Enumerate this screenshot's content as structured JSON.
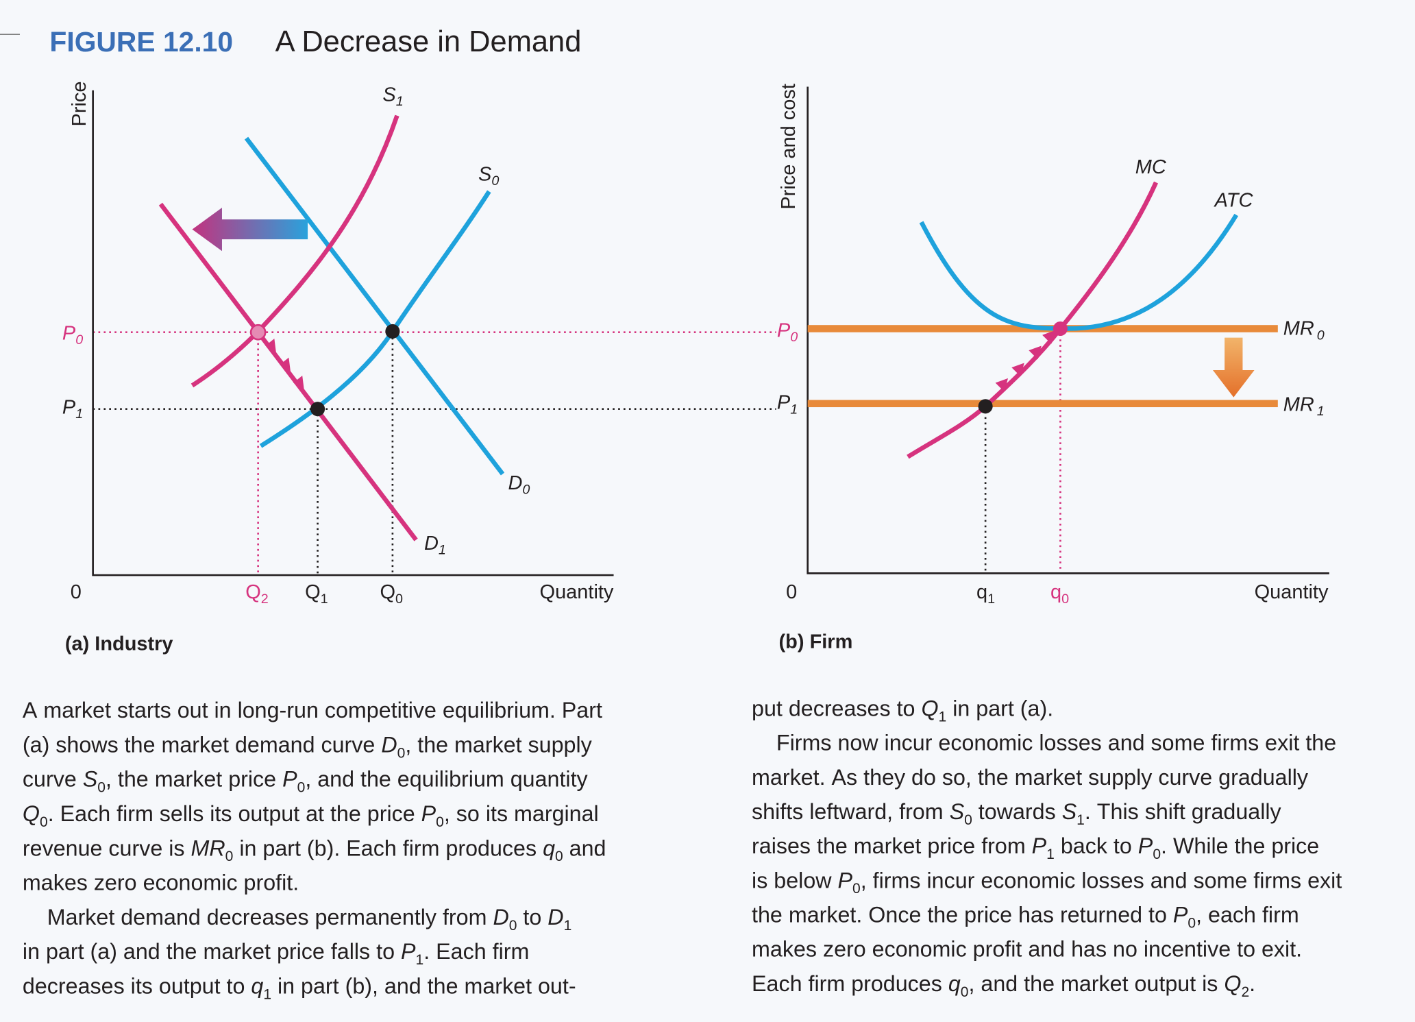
{
  "header": {
    "figure_number": "FIGURE 12.10",
    "title": "A Decrease in Demand"
  },
  "colors": {
    "pink": "#d6337e",
    "blue": "#1ea2dc",
    "orange": "#e88a3a",
    "title_blue": "#3b6fb6"
  },
  "panel_a": {
    "caption": "(a) Industry",
    "y_axis": "Price",
    "x_axis": "Quantity",
    "origin": "0",
    "curves": {
      "S1": {
        "base": "S",
        "sub": "1"
      },
      "S0": {
        "base": "S",
        "sub": "0"
      },
      "D0": {
        "base": "D",
        "sub": "0"
      },
      "D1": {
        "base": "D",
        "sub": "1"
      }
    },
    "P0": {
      "base": "P",
      "sub": "0"
    },
    "P1": {
      "base": "P",
      "sub": "1"
    },
    "Q2": {
      "base": "Q",
      "sub": "2"
    },
    "Q1": {
      "base": "Q",
      "sub": "1"
    },
    "Q0": {
      "base": "Q",
      "sub": "0"
    }
  },
  "panel_b": {
    "caption": "(b) Firm",
    "y_axis": "Price and cost",
    "x_axis": "Quantity",
    "origin": "0",
    "MC": "MC",
    "ATC": "ATC",
    "MR0": {
      "base": "MR",
      "sub": "0"
    },
    "MR1": {
      "base": "MR",
      "sub": "1"
    },
    "P0": {
      "base": "P",
      "sub": "0"
    },
    "P1": {
      "base": "P",
      "sub": "1"
    },
    "q1": {
      "base": "q",
      "sub": "1"
    },
    "q0": {
      "base": "q",
      "sub": "0"
    }
  },
  "text": {
    "left": [
      [
        [
          "A market starts out in long-run competitive equilibrium. Part",
          "n"
        ]
      ],
      [
        [
          "(a) shows the market demand curve ",
          "n"
        ],
        [
          "D",
          "i"
        ],
        [
          "0",
          "s"
        ],
        [
          ", the market supply",
          "n"
        ]
      ],
      [
        [
          "curve ",
          "n"
        ],
        [
          "S",
          "i"
        ],
        [
          "0",
          "s"
        ],
        [
          ", the market price ",
          "n"
        ],
        [
          "P",
          "i"
        ],
        [
          "0",
          "s"
        ],
        [
          ", and the equilibrium quantity",
          "n"
        ]
      ],
      [
        [
          "Q",
          "i"
        ],
        [
          "0",
          "s"
        ],
        [
          ". Each firm sells its output at the price ",
          "n"
        ],
        [
          "P",
          "i"
        ],
        [
          "0",
          "s"
        ],
        [
          ", so its marginal",
          "n"
        ]
      ],
      [
        [
          "revenue curve is ",
          "n"
        ],
        [
          "MR",
          "i"
        ],
        [
          "0",
          "s"
        ],
        [
          " in part (b). Each firm produces ",
          "n"
        ],
        [
          "q",
          "i"
        ],
        [
          "0",
          "s"
        ],
        [
          " and",
          "n"
        ]
      ],
      [
        [
          "makes zero economic profit.",
          "n"
        ]
      ],
      [
        [
          "    Market demand decreases permanently from ",
          "n"
        ],
        [
          "D",
          "i"
        ],
        [
          "0",
          "s"
        ],
        [
          " to ",
          "n"
        ],
        [
          "D",
          "i"
        ],
        [
          "1",
          "s"
        ]
      ],
      [
        [
          "in part (a) and the market price falls to ",
          "n"
        ],
        [
          "P",
          "i"
        ],
        [
          "1",
          "s"
        ],
        [
          ". Each firm",
          "n"
        ]
      ],
      [
        [
          "decreases its output to ",
          "n"
        ],
        [
          "q",
          "i"
        ],
        [
          "1",
          "s"
        ],
        [
          " in part (b), and the market out-",
          "n"
        ]
      ]
    ],
    "right": [
      [
        [
          "put decreases to ",
          "n"
        ],
        [
          "Q",
          "i"
        ],
        [
          "1",
          "s"
        ],
        [
          " in part (a).",
          "n"
        ]
      ],
      [
        [
          "    Firms now incur economic losses and some firms exit the",
          "n"
        ]
      ],
      [
        [
          "market. As they do so, the market supply curve gradually",
          "n"
        ]
      ],
      [
        [
          "shifts leftward, from ",
          "n"
        ],
        [
          "S",
          "i"
        ],
        [
          "0",
          "s"
        ],
        [
          " towards ",
          "n"
        ],
        [
          "S",
          "i"
        ],
        [
          "1",
          "s"
        ],
        [
          ". This shift gradually",
          "n"
        ]
      ],
      [
        [
          "raises the market price from ",
          "n"
        ],
        [
          "P",
          "i"
        ],
        [
          "1",
          "s"
        ],
        [
          " back to ",
          "n"
        ],
        [
          "P",
          "i"
        ],
        [
          "0",
          "s"
        ],
        [
          ". While the price",
          "n"
        ]
      ],
      [
        [
          "is below ",
          "n"
        ],
        [
          "P",
          "i"
        ],
        [
          "0",
          "s"
        ],
        [
          ", firms incur economic losses and some firms exit",
          "n"
        ]
      ],
      [
        [
          "the market. Once the price has returned to ",
          "n"
        ],
        [
          "P",
          "i"
        ],
        [
          "0",
          "s"
        ],
        [
          ", each firm",
          "n"
        ]
      ],
      [
        [
          "makes zero economic profit and has no incentive to exit.",
          "n"
        ]
      ],
      [
        [
          "Each firm produces ",
          "n"
        ],
        [
          "q",
          "i"
        ],
        [
          "0",
          "s"
        ],
        [
          ", and the market output is ",
          "n"
        ],
        [
          "Q",
          "i"
        ],
        [
          "2",
          "s"
        ],
        [
          ".",
          "n"
        ]
      ]
    ]
  }
}
